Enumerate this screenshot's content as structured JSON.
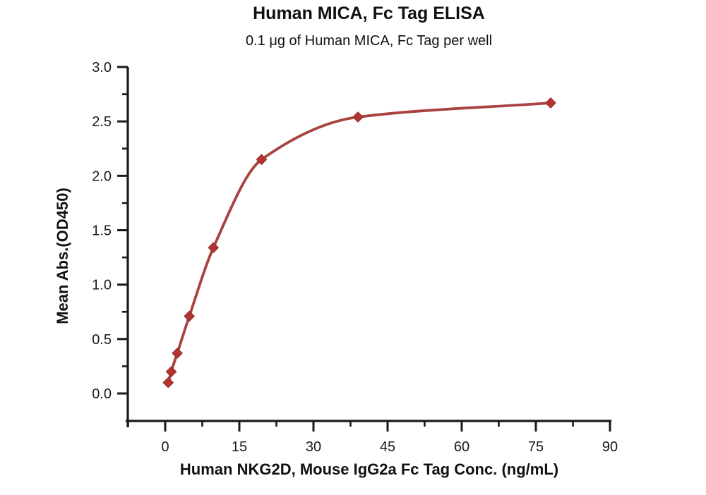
{
  "page": {
    "background": "#ffffff"
  },
  "chart_data": {
    "type": "line",
    "curve_fit": true,
    "title": "Human MICA, Fc Tag ELISA",
    "subtitle": "0.1 μg of Human MICA, Fc Tag per well",
    "xlabel": "Human NKG2D, Mouse IgG2a Fc Tag Conc. (ng/mL)",
    "ylabel": "Mean Abs.(OD450)",
    "x": [
      0.61,
      1.22,
      2.44,
      4.88,
      9.75,
      19.5,
      39,
      78
    ],
    "y": [
      0.1,
      0.2,
      0.37,
      0.71,
      1.34,
      2.15,
      2.54,
      2.67
    ],
    "xlim": [
      -8,
      90.3
    ],
    "ylim": [
      -0.25,
      3.0
    ],
    "x_ticks": {
      "major": [
        0,
        15,
        30,
        45,
        60,
        75,
        90
      ],
      "labels": [
        "0",
        "15",
        "30",
        "45",
        "60",
        "75",
        "90"
      ],
      "minor": [
        -7.5,
        7.5,
        22.5,
        37.5,
        52.5,
        67.5,
        82.5
      ]
    },
    "y_ticks": {
      "major": [
        0,
        0.5,
        1,
        1.5,
        2,
        2.5,
        3
      ],
      "labels": [
        "0.0",
        "0.5",
        "1.0",
        "1.5",
        "2.0",
        "2.5",
        "3.0"
      ],
      "minor": [
        0.25,
        0.75,
        1.25,
        1.75,
        2.25,
        2.75
      ]
    },
    "grid": false,
    "legend": "none",
    "marker": "diamond",
    "colors": {
      "curve": "#a84340",
      "marker": "#b23431",
      "marker_edge": "#992e2b",
      "axis": "#1a1a1a",
      "text": "#1a1a1a"
    }
  }
}
